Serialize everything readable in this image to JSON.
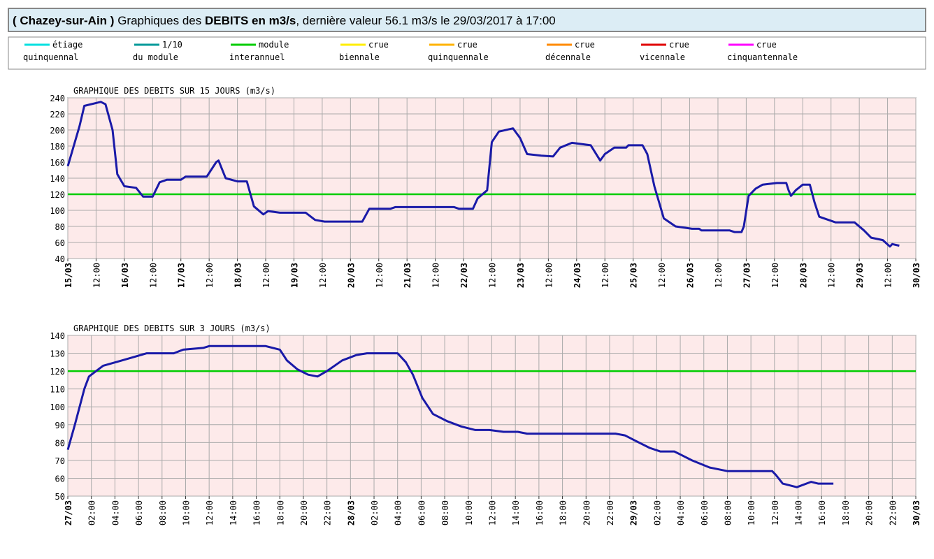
{
  "header": {
    "station": "( Chazey-sur-Ain )",
    "prefix": "Graphiques des",
    "emphasis": "DEBITS en m3/s",
    "suffix": ", dernière valeur 56.1 m3/s le 29/03/2017 à 17:00"
  },
  "legend": [
    {
      "line1": "étiage",
      "line2": "quinquennal",
      "color": "#00e0e0"
    },
    {
      "line1": "1/10",
      "line2": "du module",
      "color": "#009a9a"
    },
    {
      "line1": "module",
      "line2": "interannuel",
      "color": "#00cc00"
    },
    {
      "line1": "crue",
      "line2": "biennale",
      "color": "#ffee00"
    },
    {
      "line1": "crue",
      "line2": "quinquennale",
      "color": "#ffb300"
    },
    {
      "line1": "crue",
      "line2": "décennale",
      "color": "#ff8a00"
    },
    {
      "line1": "crue",
      "line2": "vicennale",
      "color": "#e00000"
    },
    {
      "line1": "crue",
      "line2": "cinquantennale",
      "color": "#ff00ff"
    }
  ],
  "chart_data": [
    {
      "type": "line",
      "title": "GRAPHIQUE DES DEBITS SUR 15 JOURS (m3/s)",
      "x": [
        0,
        3,
        5,
        7,
        14,
        16,
        19,
        21,
        24,
        29,
        32,
        36,
        39,
        42,
        48,
        50,
        59,
        63,
        64,
        67,
        72,
        76,
        79,
        83,
        85,
        90,
        101,
        105,
        109,
        125,
        128,
        137,
        139,
        164,
        166,
        172,
        174,
        178,
        180,
        183,
        189,
        192,
        195,
        201,
        206,
        209,
        214,
        222,
        226,
        228,
        232,
        237,
        238,
        244,
        246,
        249,
        253,
        258,
        265,
        268,
        269,
        281,
        283,
        286,
        287,
        289,
        292,
        295,
        301,
        305,
        306,
        307,
        309,
        312,
        315,
        317,
        319,
        323,
        326,
        334,
        338,
        341,
        346,
        349,
        350,
        353
      ],
      "series": [
        {
          "color": "#1a1aa8",
          "values": [
            155,
            185,
            205,
            230,
            235,
            232,
            200,
            145,
            130,
            128,
            117,
            117,
            135,
            138,
            138,
            142,
            142,
            160,
            162,
            140,
            136,
            136,
            105,
            95,
            99,
            97,
            97,
            88,
            86,
            86,
            102,
            102,
            104,
            104,
            102,
            102,
            115,
            125,
            185,
            198,
            202,
            190,
            170,
            168,
            167,
            178,
            184,
            181,
            162,
            170,
            178,
            178,
            181,
            181,
            170,
            130,
            90,
            80,
            77,
            77,
            75,
            75,
            73,
            73,
            80,
            118,
            127,
            132,
            134,
            134,
            125,
            118,
            125,
            132,
            132,
            110,
            92,
            88,
            85,
            85,
            75,
            66,
            63,
            55,
            58,
            56
          ]
        }
      ],
      "reference_lines": [
        {
          "value": 120,
          "color": "#00cc00"
        }
      ],
      "xlim": [
        0,
        360
      ],
      "xticks": [
        {
          "value": 0,
          "label": "15/03"
        },
        {
          "value": 12,
          "label": "12:00"
        },
        {
          "value": 24,
          "label": "16/03"
        },
        {
          "value": 36,
          "label": "12:00"
        },
        {
          "value": 48,
          "label": "17/03"
        },
        {
          "value": 60,
          "label": "12:00"
        },
        {
          "value": 72,
          "label": "18/03"
        },
        {
          "value": 84,
          "label": "12:00"
        },
        {
          "value": 96,
          "label": "19/03"
        },
        {
          "value": 108,
          "label": "12:00"
        },
        {
          "value": 120,
          "label": "20/03"
        },
        {
          "value": 132,
          "label": "12:00"
        },
        {
          "value": 144,
          "label": "21/03"
        },
        {
          "value": 156,
          "label": "12:00"
        },
        {
          "value": 168,
          "label": "22/03"
        },
        {
          "value": 180,
          "label": "12:00"
        },
        {
          "value": 192,
          "label": "23/03"
        },
        {
          "value": 204,
          "label": "12:00"
        },
        {
          "value": 216,
          "label": "24/03"
        },
        {
          "value": 228,
          "label": "12:00"
        },
        {
          "value": 240,
          "label": "25/03"
        },
        {
          "value": 252,
          "label": "12:00"
        },
        {
          "value": 264,
          "label": "26/03"
        },
        {
          "value": 276,
          "label": "12:00"
        },
        {
          "value": 288,
          "label": "27/03"
        },
        {
          "value": 300,
          "label": "12:00"
        },
        {
          "value": 312,
          "label": "28/03"
        },
        {
          "value": 324,
          "label": "12:00"
        },
        {
          "value": 336,
          "label": "29/03"
        },
        {
          "value": 348,
          "label": "12:00"
        },
        {
          "value": 360,
          "label": "30/03"
        }
      ],
      "ylim": [
        40,
        240
      ],
      "yticks": [
        40,
        60,
        80,
        100,
        120,
        140,
        160,
        180,
        200,
        220,
        240
      ],
      "grid": true
    },
    {
      "type": "line",
      "title": "GRAPHIQUE DES DEBITS SUR 3 JOURS (m3/s)",
      "x": [
        0,
        0.6,
        1.4,
        1.8,
        3,
        4.6,
        6.7,
        9,
        9.8,
        11.5,
        12,
        16.8,
        18,
        18.6,
        19.5,
        20.4,
        21.2,
        22,
        23.3,
        24.5,
        25.4,
        28,
        28.7,
        29.3,
        30.1,
        31,
        32.2,
        33.4,
        34.6,
        35.8,
        37,
        38.2,
        39,
        46.5,
        47.3,
        48.2,
        49.4,
        50.3,
        51.5,
        52.1,
        53,
        54.5,
        56,
        59.8,
        60.1,
        60.7,
        61.9,
        63.1,
        63.7,
        65
      ],
      "series": [
        {
          "color": "#1a1aa8",
          "values": [
            76,
            90,
            110,
            117,
            123,
            126,
            130,
            130,
            132,
            133,
            134,
            134,
            132,
            126,
            121,
            118,
            117,
            120,
            126,
            129,
            130,
            130,
            125,
            118,
            105,
            96,
            92,
            89,
            87,
            87,
            86,
            86,
            85,
            85,
            84,
            81,
            77,
            75,
            75,
            73,
            70,
            66,
            64,
            64,
            62,
            57,
            55,
            58,
            57,
            57
          ]
        }
      ],
      "reference_lines": [
        {
          "value": 120,
          "color": "#00cc00"
        }
      ],
      "xlim": [
        0,
        72
      ],
      "xticks": [
        {
          "value": 0,
          "label": "27/03"
        },
        {
          "value": 2,
          "label": "02:00"
        },
        {
          "value": 4,
          "label": "04:00"
        },
        {
          "value": 6,
          "label": "06:00"
        },
        {
          "value": 8,
          "label": "08:00"
        },
        {
          "value": 10,
          "label": "10:00"
        },
        {
          "value": 12,
          "label": "12:00"
        },
        {
          "value": 14,
          "label": "14:00"
        },
        {
          "value": 16,
          "label": "16:00"
        },
        {
          "value": 18,
          "label": "18:00"
        },
        {
          "value": 20,
          "label": "20:00"
        },
        {
          "value": 22,
          "label": "22:00"
        },
        {
          "value": 24,
          "label": "28/03"
        },
        {
          "value": 26,
          "label": "02:00"
        },
        {
          "value": 28,
          "label": "04:00"
        },
        {
          "value": 30,
          "label": "06:00"
        },
        {
          "value": 32,
          "label": "08:00"
        },
        {
          "value": 34,
          "label": "10:00"
        },
        {
          "value": 36,
          "label": "12:00"
        },
        {
          "value": 38,
          "label": "14:00"
        },
        {
          "value": 40,
          "label": "16:00"
        },
        {
          "value": 42,
          "label": "18:00"
        },
        {
          "value": 44,
          "label": "20:00"
        },
        {
          "value": 46,
          "label": "22:00"
        },
        {
          "value": 48,
          "label": "29/03"
        },
        {
          "value": 50,
          "label": "02:00"
        },
        {
          "value": 52,
          "label": "04:00"
        },
        {
          "value": 54,
          "label": "06:00"
        },
        {
          "value": 56,
          "label": "08:00"
        },
        {
          "value": 58,
          "label": "10:00"
        },
        {
          "value": 60,
          "label": "12:00"
        },
        {
          "value": 62,
          "label": "14:00"
        },
        {
          "value": 64,
          "label": "16:00"
        },
        {
          "value": 66,
          "label": "18:00"
        },
        {
          "value": 68,
          "label": "20:00"
        },
        {
          "value": 70,
          "label": "22:00"
        },
        {
          "value": 72,
          "label": "30/03"
        }
      ],
      "ylim": [
        50,
        140
      ],
      "yticks": [
        50,
        60,
        70,
        80,
        90,
        100,
        110,
        120,
        130,
        140
      ],
      "grid": true
    }
  ]
}
